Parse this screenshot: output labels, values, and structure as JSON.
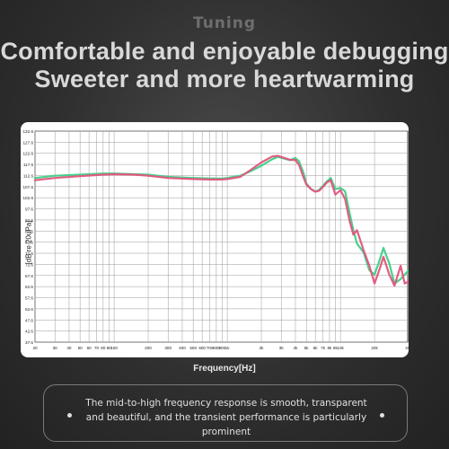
{
  "header": {
    "section_title": "Tuning",
    "headline_line1": "Comfortable and enjoyable debugging",
    "headline_line2": "Sweeter and more heartwarming"
  },
  "caption": {
    "text": "The mid-to-high frequency response is smooth, transparent and beautiful, and the transient performance is particularly prominent"
  },
  "chart_data": {
    "type": "line",
    "xlabel": "Frequency[Hz]",
    "ylabel": "[dB re 20uPa]",
    "x_scale": "log",
    "xlim": [
      20,
      40000
    ],
    "ylim": [
      37.6,
      132.6
    ],
    "grid": true,
    "x_ticks": [
      20,
      30,
      40,
      50,
      60,
      70,
      80,
      90,
      100,
      200,
      300,
      400,
      500,
      600,
      700,
      800,
      900,
      1000,
      2000,
      3000,
      4000,
      5000,
      6000,
      7000,
      8000,
      9000,
      10000,
      20000,
      40000
    ],
    "x_tick_labels": [
      "20",
      "30",
      "40",
      "50",
      "60",
      "70",
      "80",
      "90",
      "100",
      "200",
      "300",
      "400",
      "500",
      "600",
      "700",
      "800",
      "900",
      "1k",
      "2k",
      "3k",
      "4k",
      "5k",
      "6k",
      "7k",
      "8k",
      "9k",
      "10k",
      "20k",
      "40k"
    ],
    "y_ticks": [
      37.6,
      42.6,
      47.6,
      52.6,
      57.6,
      62.6,
      67.6,
      72.6,
      77.6,
      82.6,
      87.6,
      92.6,
      97.6,
      102.6,
      107.6,
      112.6,
      117.6,
      122.6,
      127.6,
      132.6
    ],
    "y_tick_labels": [
      "37.6",
      "42.6",
      "47.6",
      "52.6",
      "57.6",
      "62.6",
      "67.6",
      "72.6",
      "77.6",
      "82.6",
      "87.6",
      "92.6",
      "97.6",
      "102.6",
      "107.6",
      "112.6",
      "117.6",
      "122.6",
      "127.6",
      "132.6"
    ],
    "series": [
      {
        "color": "#3ecf86",
        "x": [
          20,
          30,
          50,
          80,
          100,
          150,
          200,
          300,
          500,
          700,
          900,
          1000,
          1300,
          1600,
          2000,
          2500,
          2800,
          3200,
          3600,
          4000,
          4300,
          4700,
          5000,
          5500,
          6000,
          6500,
          7000,
          7600,
          8200,
          9000,
          10000,
          11000,
          12000,
          13000,
          14000,
          16000,
          18000,
          20000,
          22000,
          24000,
          27000,
          30000,
          34000,
          37000,
          40000
        ],
        "y": [
          111.5,
          112.5,
          113,
          113.5,
          113.5,
          113.2,
          113,
          112,
          111.5,
          111.3,
          111.2,
          111.5,
          112.5,
          114.5,
          117,
          120,
          121,
          120.2,
          119.5,
          120.5,
          119,
          114,
          109,
          106.5,
          105.3,
          106.2,
          108,
          110,
          111.5,
          106.5,
          107,
          105.5,
          96,
          88,
          82,
          78,
          70,
          68,
          74,
          80,
          73,
          64,
          66,
          68,
          70
        ]
      },
      {
        "color": "#e3547c",
        "x": [
          20,
          30,
          50,
          80,
          100,
          150,
          200,
          300,
          500,
          700,
          900,
          1000,
          1300,
          1600,
          2000,
          2500,
          2800,
          3200,
          3600,
          4000,
          4300,
          4700,
          5000,
          5500,
          6000,
          6500,
          7000,
          7600,
          8200,
          9000,
          10000,
          11000,
          12000,
          13000,
          14000,
          16000,
          18000,
          20000,
          22000,
          24000,
          27000,
          30000,
          34000,
          37000,
          40000
        ],
        "y": [
          110.5,
          111.5,
          112.3,
          113,
          113.2,
          113,
          112.5,
          111.5,
          111,
          110.8,
          110.8,
          111,
          112,
          115,
          118.5,
          121.2,
          121.5,
          120.5,
          119.7,
          119.5,
          117.5,
          112,
          108.5,
          106.5,
          105.3,
          105.8,
          107.5,
          109.5,
          110.5,
          104,
          106,
          102,
          92.5,
          86,
          88,
          79,
          72,
          64,
          70,
          76,
          68,
          63,
          72,
          64,
          65
        ]
      }
    ]
  }
}
